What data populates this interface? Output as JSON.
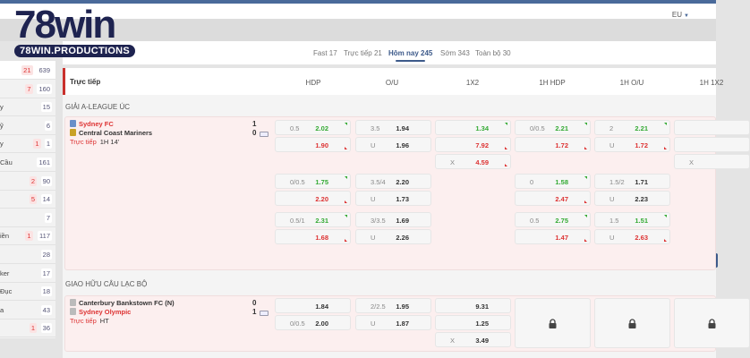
{
  "brand": {
    "logo_text": "78win",
    "logo_subtext": "78WIN.PRODUCTIONS",
    "accent": "#3d5a8a",
    "live_red": "#d33",
    "up_green": "#3a3"
  },
  "header": {
    "odds_format": "EU"
  },
  "tabs": [
    {
      "label": "Fast 17"
    },
    {
      "label": "Trực tiếp 21"
    },
    {
      "label": "Hôm nay 245",
      "active": true
    },
    {
      "label": "Sớm 343"
    },
    {
      "label": "Toàn bộ 30"
    }
  ],
  "sidebar": {
    "items": [
      {
        "label": "",
        "red": "21",
        "count": "639",
        "active": true
      },
      {
        "label": "",
        "red": "7",
        "count": "160"
      },
      {
        "label": "y",
        "count": "15"
      },
      {
        "label": "ỹ",
        "count": "6"
      },
      {
        "label": "y",
        "red": "1",
        "count": "1"
      },
      {
        "label": "Cầu",
        "count": "161"
      },
      {
        "label": "",
        "red": "2",
        "count": "90"
      },
      {
        "label": "",
        "red": "5",
        "count": "14"
      },
      {
        "label": "",
        "count": "7"
      },
      {
        "label": "iền",
        "red": "1",
        "count": "117"
      },
      {
        "label": "",
        "count": "28"
      },
      {
        "label": "ker",
        "count": "17"
      },
      {
        "label": "Đục",
        "count": "18"
      },
      {
        "label": "a",
        "count": "43"
      },
      {
        "label": "",
        "red": "1",
        "count": "36"
      }
    ]
  },
  "table": {
    "section_label": "Trực tiếp",
    "columns": [
      "HDP",
      "O/U",
      "1X2",
      "1H HDP",
      "1H O/U",
      "1H 1X2"
    ],
    "leagues": [
      {
        "name": "GIẢI A-LEAGUE ÚC",
        "match": {
          "home": "Sydney FC",
          "away": "Central Coast Mariners",
          "home_score": "1",
          "away_score": "0",
          "status_label": "Trực tiếp",
          "time": "1H 14'",
          "home_red": true
        },
        "rows": [
          [
            [
              {
                "k": "0.5",
                "v": "2.02",
                "t": "up"
              },
              {
                "k": "",
                "v": "1.90",
                "t": "down"
              }
            ],
            [
              {
                "k": "3.5",
                "v": "1.94"
              },
              {
                "k": "U",
                "v": "1.96"
              }
            ],
            [
              {
                "k": "",
                "v": "1.34",
                "t": "up"
              },
              {
                "k": "",
                "v": "7.92",
                "t": "down"
              },
              {
                "k": "X",
                "v": "4.59",
                "t": "down"
              }
            ],
            [
              {
                "k": "0/0.5",
                "v": "2.21",
                "t": "up"
              },
              {
                "k": "",
                "v": "1.72",
                "t": "down"
              }
            ],
            [
              {
                "k": "2",
                "v": "2.21",
                "t": "up"
              },
              {
                "k": "U",
                "v": "1.72",
                "t": "down"
              }
            ],
            [
              {
                "k": "",
                "v": ""
              },
              {
                "k": "",
                "v": ""
              },
              {
                "k": "X",
                "v": ""
              }
            ]
          ],
          [
            [
              {
                "k": "0/0.5",
                "v": "1.75",
                "t": "up"
              },
              {
                "k": "",
                "v": "2.20",
                "t": "down"
              }
            ],
            [
              {
                "k": "3.5/4",
                "v": "2.20"
              },
              {
                "k": "U",
                "v": "1.73"
              }
            ],
            [],
            [
              {
                "k": "0",
                "v": "1.58",
                "t": "up"
              },
              {
                "k": "",
                "v": "2.47",
                "t": "down"
              }
            ],
            [
              {
                "k": "1.5/2",
                "v": "1.71"
              },
              {
                "k": "U",
                "v": "2.23"
              }
            ],
            []
          ],
          [
            [
              {
                "k": "0.5/1",
                "v": "2.31",
                "t": "up"
              },
              {
                "k": "",
                "v": "1.68",
                "t": "down"
              }
            ],
            [
              {
                "k": "3/3.5",
                "v": "1.69"
              },
              {
                "k": "U",
                "v": "2.26"
              }
            ],
            [],
            [
              {
                "k": "0.5",
                "v": "2.75",
                "t": "up"
              },
              {
                "k": "",
                "v": "1.47",
                "t": "down"
              }
            ],
            [
              {
                "k": "1.5",
                "v": "1.51",
                "t": "up"
              },
              {
                "k": "U",
                "v": "2.63",
                "t": "down"
              }
            ],
            []
          ]
        ]
      },
      {
        "name": "GIAO HỮU CÂU LẠC BỘ",
        "match": {
          "home": "Canterbury Bankstown FC (N)",
          "away": "Sydney Olympic",
          "home_score": "0",
          "away_score": "1",
          "status_label": "Trực tiếp",
          "time": "HT",
          "away_red": true
        },
        "rows": [
          [
            [
              {
                "k": "",
                "v": "1.84"
              },
              {
                "k": "0/0.5",
                "v": "2.00"
              }
            ],
            [
              {
                "k": "2/2.5",
                "v": "1.95"
              },
              {
                "k": "U",
                "v": "1.87"
              }
            ],
            [
              {
                "k": "",
                "v": "9.31"
              },
              {
                "k": "",
                "v": "1.25"
              },
              {
                "k": "X",
                "v": "3.49"
              }
            ],
            "locked",
            "locked",
            "locked"
          ]
        ]
      }
    ]
  }
}
